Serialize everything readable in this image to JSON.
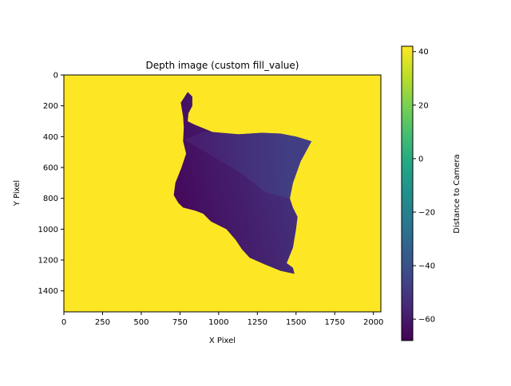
{
  "chart_data": {
    "type": "heatmap",
    "title": "Depth image (custom fill_value)",
    "xlabel": "X Pixel",
    "ylabel": "Y Pixel",
    "xlim": [
      0,
      2048
    ],
    "ylim": [
      1536,
      0
    ],
    "xticks": [
      0,
      250,
      500,
      750,
      1000,
      1250,
      1500,
      1750,
      2000
    ],
    "yticks": [
      0,
      200,
      400,
      600,
      800,
      1000,
      1200,
      1400
    ],
    "colorbar": {
      "label": "Distance to Camera",
      "range": [
        -68,
        42
      ],
      "ticks": [
        -60,
        -40,
        -20,
        0,
        20,
        40
      ],
      "colormap": "viridis"
    },
    "fill_value": 42,
    "fill_color": "#fde725",
    "surface": {
      "outline": [
        [
          800,
          110
        ],
        [
          830,
          140
        ],
        [
          830,
          200
        ],
        [
          805,
          250
        ],
        [
          800,
          300
        ],
        [
          840,
          320
        ],
        [
          960,
          370
        ],
        [
          1130,
          385
        ],
        [
          1280,
          375
        ],
        [
          1400,
          380
        ],
        [
          1500,
          400
        ],
        [
          1600,
          430
        ],
        [
          1530,
          560
        ],
        [
          1480,
          700
        ],
        [
          1460,
          800
        ],
        [
          1480,
          860
        ],
        [
          1510,
          920
        ],
        [
          1500,
          1000
        ],
        [
          1480,
          1120
        ],
        [
          1440,
          1220
        ],
        [
          1480,
          1250
        ],
        [
          1490,
          1290
        ],
        [
          1400,
          1270
        ],
        [
          1300,
          1230
        ],
        [
          1200,
          1185
        ],
        [
          1150,
          1130
        ],
        [
          1110,
          1070
        ],
        [
          1050,
          1000
        ],
        [
          950,
          950
        ],
        [
          900,
          900
        ],
        [
          850,
          880
        ],
        [
          770,
          860
        ],
        [
          740,
          830
        ],
        [
          710,
          780
        ],
        [
          720,
          700
        ],
        [
          760,
          600
        ],
        [
          790,
          510
        ],
        [
          770,
          430
        ],
        [
          775,
          340
        ],
        [
          770,
          270
        ],
        [
          755,
          180
        ]
      ],
      "upper_panel": [
        [
          780,
          420
        ],
        [
          900,
          370
        ],
        [
          1130,
          385
        ],
        [
          1280,
          375
        ],
        [
          1400,
          380
        ],
        [
          1500,
          400
        ],
        [
          1600,
          430
        ],
        [
          1530,
          560
        ],
        [
          1480,
          700
        ],
        [
          1460,
          800
        ],
        [
          1300,
          760
        ],
        [
          1150,
          640
        ],
        [
          950,
          520
        ]
      ],
      "value_near_min": -66,
      "value_near_max": -47
    }
  }
}
